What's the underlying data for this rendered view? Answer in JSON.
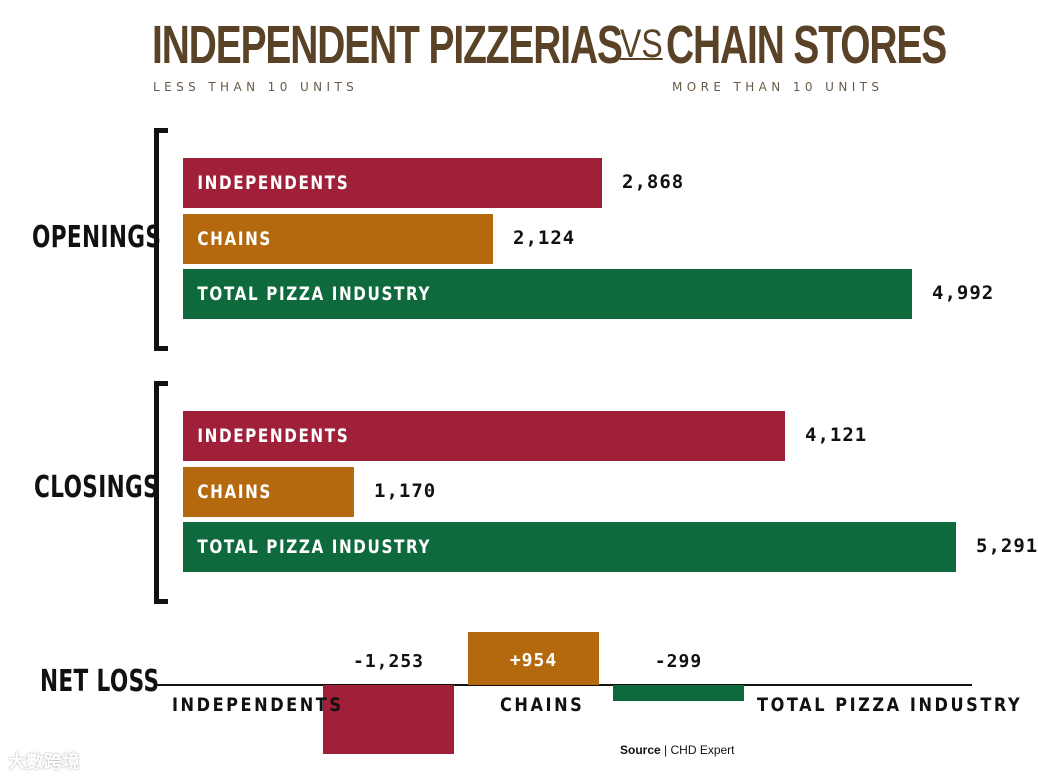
{
  "header": {
    "title_left": "INDEPENDENT PIZZERIAS",
    "title_vs": "VS",
    "title_right": "CHAIN STORES",
    "subtitle_left": "LESS THAN 10 UNITS",
    "subtitle_right": "MORE THAN 10 UNITS"
  },
  "colors": {
    "independents": "#a0203a",
    "chains": "#b5690f",
    "total": "#0e6a3c",
    "title": "#5a4226"
  },
  "chart_data": {
    "type": "bar",
    "orientation": "horizontal",
    "groups": [
      {
        "label": "OPENINGS",
        "bars": [
          {
            "category": "INDEPENDENTS",
            "value": 2868,
            "value_label": "2,868",
            "color_key": "independents"
          },
          {
            "category": "CHAINS",
            "value": 2124,
            "value_label": "2,124",
            "color_key": "chains"
          },
          {
            "category": "TOTAL PIZZA INDUSTRY",
            "value": 4992,
            "value_label": "4,992",
            "color_key": "total"
          }
        ]
      },
      {
        "label": "CLOSINGS",
        "bars": [
          {
            "category": "INDEPENDENTS",
            "value": 4121,
            "value_label": "4,121",
            "color_key": "independents"
          },
          {
            "category": "CHAINS",
            "value": 1170,
            "value_label": "1,170",
            "color_key": "chains"
          },
          {
            "category": "TOTAL PIZZA INDUSTRY",
            "value": 5291,
            "value_label": "5,291",
            "color_key": "total"
          }
        ]
      }
    ],
    "xlim": [
      0,
      5600
    ],
    "net": {
      "label": "NET LOSS",
      "bars": [
        {
          "category": "INDEPENDENTS",
          "value": -1253,
          "value_label": "-1,253",
          "color_key": "independents"
        },
        {
          "category": "CHAINS",
          "value": 954,
          "value_label": "+954",
          "color_key": "chains"
        },
        {
          "category": "TOTAL PIZZA INDUSTRY",
          "value": -299,
          "value_label": "-299",
          "color_key": "total"
        }
      ]
    }
  },
  "source": {
    "label": "Source",
    "separator": "|",
    "text": "CHD Expert"
  },
  "watermark": {
    "text": "大數跨境"
  }
}
